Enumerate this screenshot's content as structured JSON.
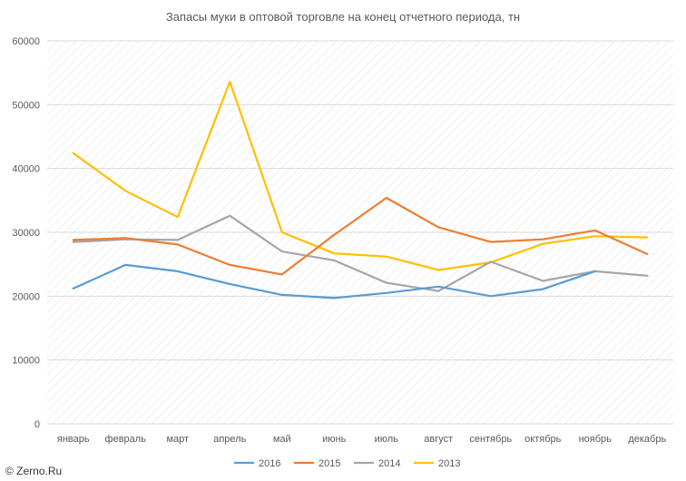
{
  "chart_data": {
    "type": "line",
    "title": "Запасы муки в оптовой торговле на конец отчетного периода, тн",
    "xlabel": "",
    "ylabel": "",
    "categories": [
      "январь",
      "февраль",
      "март",
      "апрель",
      "май",
      "июнь",
      "июль",
      "август",
      "сентябрь",
      "октябрь",
      "ноябрь",
      "декабрь"
    ],
    "ylim": [
      0,
      60000
    ],
    "yticks": [
      0,
      10000,
      20000,
      30000,
      40000,
      50000,
      60000
    ],
    "ytick_labels": [
      "0",
      "10000",
      "20000",
      "30000",
      "40000",
      "50000",
      "60000"
    ],
    "grid": true,
    "legend_position": "bottom",
    "series": [
      {
        "name": "2016",
        "color": "#5B9BD5",
        "values": [
          21200,
          24900,
          23900,
          21900,
          20200,
          19700,
          20500,
          21500,
          20000,
          21100,
          23900,
          null
        ]
      },
      {
        "name": "2015",
        "color": "#ED7D31",
        "values": [
          28800,
          29100,
          28100,
          24900,
          23400,
          29600,
          35400,
          30800,
          28500,
          28900,
          30300,
          26600
        ]
      },
      {
        "name": "2014",
        "color": "#A5A5A5",
        "values": [
          28500,
          28900,
          28800,
          32600,
          27000,
          25600,
          22100,
          20800,
          25400,
          22400,
          23900,
          23200
        ]
      },
      {
        "name": "2013",
        "color": "#FFC000",
        "values": [
          42400,
          36500,
          32400,
          53600,
          30000,
          26700,
          26200,
          24100,
          25300,
          28200,
          29400,
          29200
        ]
      }
    ]
  },
  "watermark": "© Zerno.Ru",
  "colors": {
    "grid": "#D9D9D9",
    "hatch": "#E6E6E6",
    "axis_text": "#595959"
  }
}
